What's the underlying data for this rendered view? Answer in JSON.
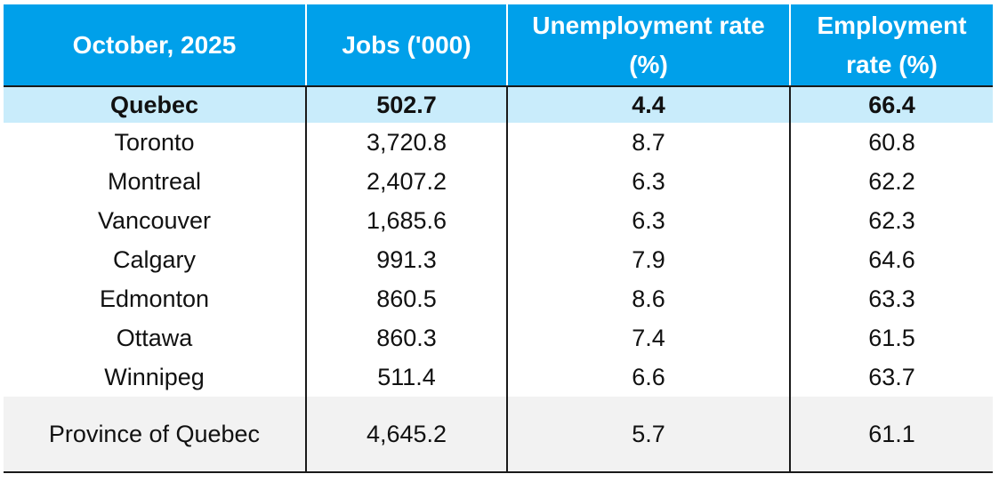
{
  "chart_data": {
    "type": "table",
    "columns": [
      "October, 2025",
      "Jobs ('000)",
      "Unemployment rate (%)",
      "Employment rate (%)"
    ],
    "header": {
      "col1": "October, 2025",
      "col2": "Jobs ('000)",
      "col3_line1": "Unemployment rate",
      "col3_line2": "(%)",
      "col4_line1": "Employment",
      "col4_line2": "rate (%)"
    },
    "rows": [
      {
        "region": "Quebec",
        "jobs": "502.7",
        "unemployment": "4.4",
        "employment": "66.4",
        "highlight": true
      },
      {
        "region": "Toronto",
        "jobs": "3,720.8",
        "unemployment": "8.7",
        "employment": "60.8"
      },
      {
        "region": "Montreal",
        "jobs": "2,407.2",
        "unemployment": "6.3",
        "employment": "62.2"
      },
      {
        "region": "Vancouver",
        "jobs": "1,685.6",
        "unemployment": "6.3",
        "employment": "62.3"
      },
      {
        "region": "Calgary",
        "jobs": "991.3",
        "unemployment": "7.9",
        "employment": "64.6"
      },
      {
        "region": "Edmonton",
        "jobs": "860.5",
        "unemployment": "8.6",
        "employment": "63.3"
      },
      {
        "region": "Ottawa",
        "jobs": "860.3",
        "unemployment": "7.4",
        "employment": "61.5"
      },
      {
        "region": "Winnipeg",
        "jobs": "511.4",
        "unemployment": "6.6",
        "employment": "63.7"
      },
      {
        "region": "Province of Quebec",
        "jobs": "4,645.2",
        "unemployment": "5.7",
        "employment": "61.1",
        "total": true
      }
    ],
    "colors": {
      "header_bg": "#00a0ea",
      "header_text": "#ffffff",
      "highlight_bg": "#c9ecfb",
      "total_bg": "#f2f2f2"
    }
  }
}
